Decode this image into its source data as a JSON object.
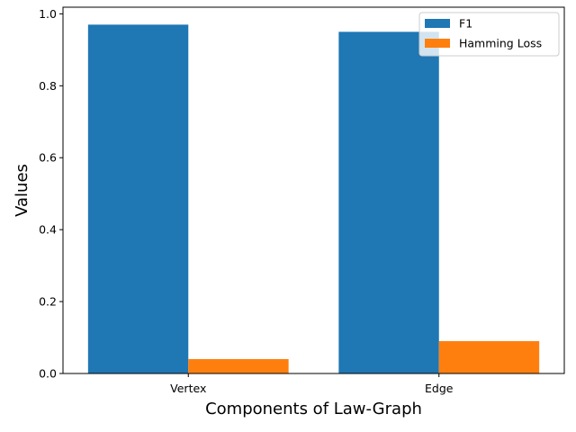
{
  "chart_data": {
    "type": "bar",
    "categories": [
      "Vertex",
      "Edge"
    ],
    "series": [
      {
        "name": "F1",
        "values": [
          0.97,
          0.95
        ],
        "color": "#1f77b4"
      },
      {
        "name": "Hamming Loss",
        "values": [
          0.04,
          0.09
        ],
        "color": "#ff7f0e"
      }
    ],
    "xlabel": "Components of Law-Graph",
    "ylabel": "Values",
    "ylim": [
      0,
      1.0185
    ],
    "yticks": [
      "0.0",
      "0.2",
      "0.4",
      "0.6",
      "0.8",
      "1.0"
    ],
    "grid": false,
    "legend": "upper right"
  }
}
